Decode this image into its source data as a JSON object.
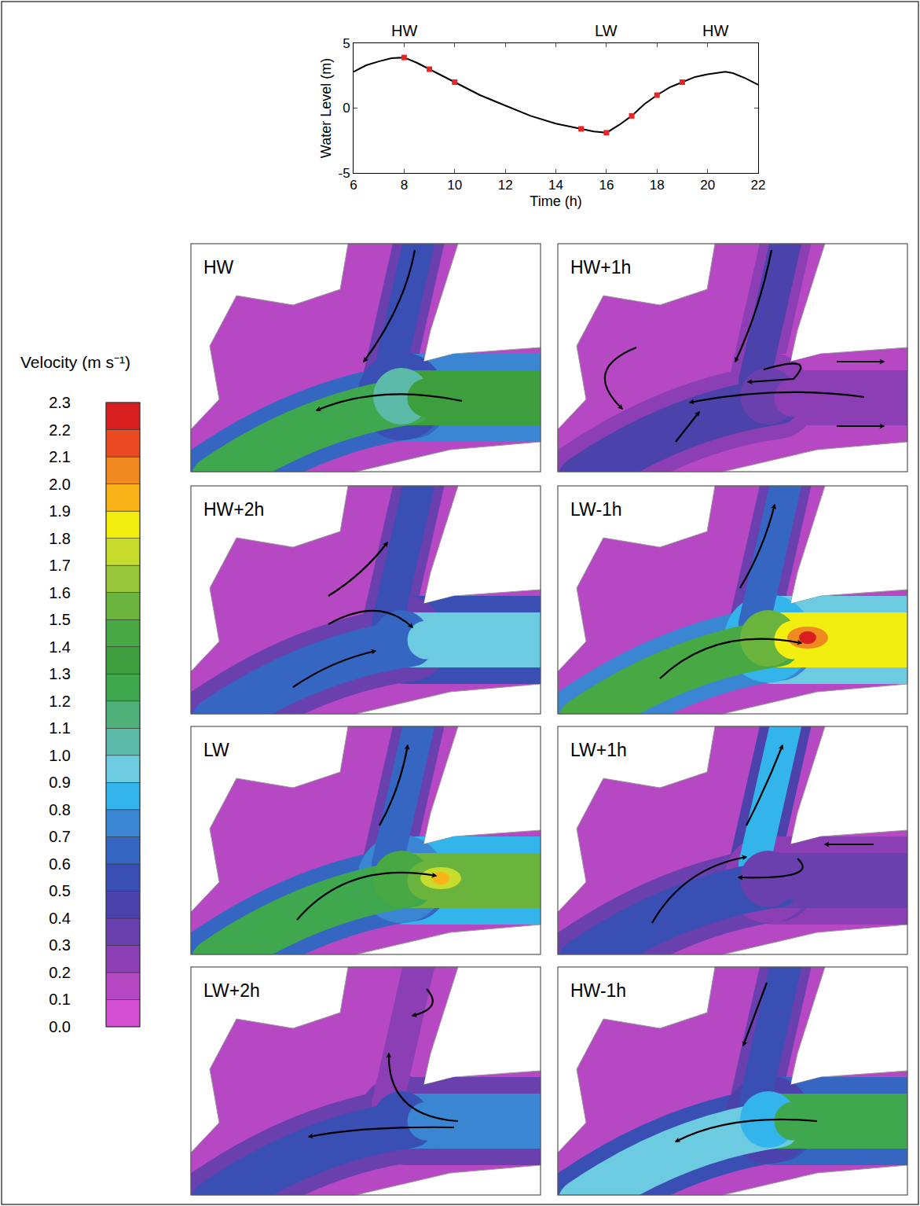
{
  "chart_data": {
    "type": "line",
    "x_title": "Time (h)",
    "y_title": "Water Level (m)",
    "xlim": [
      6,
      22
    ],
    "xticks": [
      6,
      8,
      10,
      12,
      14,
      16,
      18,
      20,
      22
    ],
    "ylim": [
      -5,
      5
    ],
    "yticks": [
      -5,
      0,
      5
    ],
    "grid": false,
    "annotations": [
      {
        "text": "HW",
        "x": 8
      },
      {
        "text": "LW",
        "x": 16
      },
      {
        "text": "HW",
        "x": 20.3
      }
    ],
    "series": [
      {
        "type": "line",
        "color": "#000000",
        "x": [
          6,
          6.5,
          7,
          7.5,
          8,
          8.5,
          9,
          10,
          11,
          12,
          13,
          14,
          15,
          15.5,
          16,
          16.5,
          17,
          17.5,
          18,
          18.5,
          19,
          19.5,
          20,
          20.7,
          21,
          21.5,
          22
        ],
        "values": [
          2.8,
          3.3,
          3.6,
          3.85,
          3.9,
          3.5,
          3.0,
          2.0,
          1.0,
          0.2,
          -0.6,
          -1.2,
          -1.6,
          -1.8,
          -1.9,
          -1.3,
          -0.6,
          0.3,
          1.0,
          1.6,
          2.0,
          2.4,
          2.6,
          2.8,
          2.7,
          2.3,
          1.8
        ]
      },
      {
        "type": "scatter",
        "color": "#e8262a",
        "marker": "square",
        "x": [
          8,
          9,
          10,
          15,
          16,
          17,
          18,
          19
        ],
        "values": [
          3.9,
          3.0,
          2.0,
          -1.6,
          -1.9,
          -0.6,
          1.0,
          2.0
        ]
      }
    ]
  },
  "colorbar": {
    "title": "Velocity (m s⁻¹)",
    "range": [
      0,
      2.3
    ],
    "ticks": [
      {
        "value": 0,
        "label": "0.0"
      },
      0.1,
      0.2,
      0.3,
      0.4,
      0.5,
      0.6,
      0.7,
      0.8,
      0.9,
      {
        "value": 1,
        "label": "1.0"
      },
      1.1,
      1.2,
      1.3,
      1.4,
      1.5,
      1.6,
      1.7,
      1.8,
      1.9,
      {
        "value": 2,
        "label": "2.0"
      },
      2.1,
      2.2,
      2.3
    ],
    "colors": [
      "#d24fd2",
      "#b648c4",
      "#8c3fb4",
      "#6a3fae",
      "#4b42ac",
      "#3a4fb4",
      "#3466c2",
      "#3a86d2",
      "#33b4ea",
      "#6ccbe0",
      "#5cbaa8",
      "#4fb07a",
      "#3fa84e",
      "#3c9e3c",
      "#48a844",
      "#6ab43e",
      "#98c63a",
      "#c8dc2e",
      "#f2ee10",
      "#f8b418",
      "#f08a20",
      "#ea4a22",
      "#d81e1e"
    ]
  },
  "panels": [
    {
      "label": "HW",
      "velocity": {
        "northern_branch": 0.5,
        "junction": 1.0,
        "eastern_channel": 1.3,
        "western_channel": 1.2,
        "shoals": 0.1
      }
    },
    {
      "label": "HW+1h",
      "velocity": {
        "northern_branch": 0.4,
        "junction": 0.3,
        "eastern_channel": 0.2,
        "western_channel": 0.4,
        "shoals": 0.1
      }
    },
    {
      "label": "HW+2h",
      "velocity": {
        "northern_branch": 0.5,
        "junction": 0.6,
        "eastern_channel": 0.9,
        "western_channel": 0.6,
        "shoals": 0.1
      }
    },
    {
      "label": "LW-1h",
      "velocity": {
        "northern_branch": 0.6,
        "junction": 1.5,
        "eastern_channel": 1.8,
        "western_channel": 1.4,
        "shoals": 0.1,
        "peak": 2.2
      }
    },
    {
      "label": "LW",
      "velocity": {
        "northern_branch": 0.6,
        "junction": 1.4,
        "eastern_channel": 1.5,
        "western_channel": 1.2,
        "shoals": 0.1,
        "peak": 1.9
      }
    },
    {
      "label": "LW+1h",
      "velocity": {
        "northern_branch": 0.8,
        "junction": 0.3,
        "eastern_channel": 0.3,
        "western_channel": 0.5,
        "shoals": 0.1
      }
    },
    {
      "label": "LW+2h",
      "velocity": {
        "northern_branch": 0.2,
        "junction": 0.5,
        "eastern_channel": 0.7,
        "western_channel": 0.5,
        "shoals": 0.1
      }
    },
    {
      "label": "HW-1h",
      "velocity": {
        "northern_branch": 0.5,
        "junction": 0.8,
        "eastern_channel": 1.2,
        "western_channel": 0.9,
        "shoals": 0.1
      }
    }
  ]
}
